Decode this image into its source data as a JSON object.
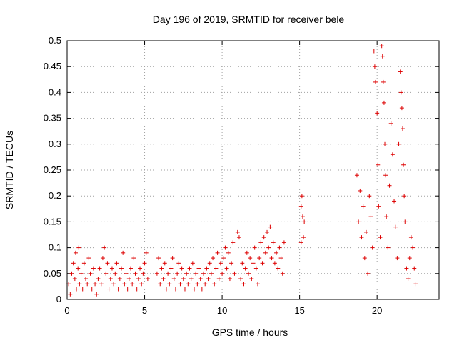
{
  "chart_data": {
    "type": "scatter",
    "title": "Day 196 of 2019, SRMTID for receiver bele",
    "xlabel": "GPS time / hours",
    "ylabel": "SRMTID / TECUs",
    "xlim": [
      0,
      24
    ],
    "ylim": [
      0,
      0.5
    ],
    "grid": true,
    "marker": "+",
    "x_ticks": [
      {
        "value": 0,
        "label": "0"
      },
      {
        "value": 5,
        "label": "5"
      },
      {
        "value": 10,
        "label": "10"
      },
      {
        "value": 15,
        "label": "15"
      },
      {
        "value": 20,
        "label": "20"
      }
    ],
    "y_ticks": [
      {
        "value": 0,
        "label": "0"
      },
      {
        "value": 0.05,
        "label": "0.05"
      },
      {
        "value": 0.1,
        "label": "0.1"
      },
      {
        "value": 0.15,
        "label": "0.15"
      },
      {
        "value": 0.2,
        "label": "0.2"
      },
      {
        "value": 0.25,
        "label": "0.25"
      },
      {
        "value": 0.3,
        "label": "0.3"
      },
      {
        "value": 0.35,
        "label": "0.35"
      },
      {
        "value": 0.4,
        "label": "0.4"
      },
      {
        "value": 0.45,
        "label": "0.45"
      },
      {
        "value": 0.5,
        "label": "0.5"
      }
    ],
    "series": [
      {
        "name": "SRMTID",
        "color": "#dd0000",
        "points": [
          [
            0.1,
            0.03
          ],
          [
            0.2,
            0.01
          ],
          [
            0.3,
            0.05
          ],
          [
            0.4,
            0.07
          ],
          [
            0.5,
            0.04
          ],
          [
            0.55,
            0.09
          ],
          [
            0.6,
            0.02
          ],
          [
            0.7,
            0.06
          ],
          [
            0.75,
            0.1
          ],
          [
            0.8,
            0.03
          ],
          [
            0.9,
            0.05
          ],
          [
            1.0,
            0.02
          ],
          [
            1.1,
            0.07
          ],
          [
            1.2,
            0.04
          ],
          [
            1.3,
            0.03
          ],
          [
            1.4,
            0.08
          ],
          [
            1.5,
            0.05
          ],
          [
            1.6,
            0.02
          ],
          [
            1.7,
            0.06
          ],
          [
            1.8,
            0.03
          ],
          [
            1.9,
            0.01
          ],
          [
            2.0,
            0.04
          ],
          [
            2.1,
            0.06
          ],
          [
            2.2,
            0.03
          ],
          [
            2.3,
            0.08
          ],
          [
            2.4,
            0.1
          ],
          [
            2.5,
            0.05
          ],
          [
            2.6,
            0.07
          ],
          [
            2.7,
            0.02
          ],
          [
            2.8,
            0.04
          ],
          [
            2.9,
            0.06
          ],
          [
            3.0,
            0.03
          ],
          [
            3.1,
            0.05
          ],
          [
            3.2,
            0.07
          ],
          [
            3.3,
            0.02
          ],
          [
            3.4,
            0.04
          ],
          [
            3.5,
            0.06
          ],
          [
            3.6,
            0.09
          ],
          [
            3.7,
            0.03
          ],
          [
            3.8,
            0.05
          ],
          [
            3.9,
            0.02
          ],
          [
            4.0,
            0.04
          ],
          [
            4.1,
            0.06
          ],
          [
            4.2,
            0.03
          ],
          [
            4.3,
            0.08
          ],
          [
            4.4,
            0.05
          ],
          [
            4.5,
            0.02
          ],
          [
            4.6,
            0.04
          ],
          [
            4.7,
            0.06
          ],
          [
            4.8,
            0.03
          ],
          [
            4.9,
            0.05
          ],
          [
            5.0,
            0.07
          ],
          [
            5.1,
            0.09
          ],
          [
            5.2,
            0.04
          ],
          [
            5.8,
            0.05
          ],
          [
            5.9,
            0.08
          ],
          [
            6.0,
            0.03
          ],
          [
            6.1,
            0.06
          ],
          [
            6.2,
            0.04
          ],
          [
            6.3,
            0.07
          ],
          [
            6.4,
            0.02
          ],
          [
            6.5,
            0.05
          ],
          [
            6.6,
            0.03
          ],
          [
            6.7,
            0.06
          ],
          [
            6.8,
            0.08
          ],
          [
            6.9,
            0.04
          ],
          [
            7.0,
            0.02
          ],
          [
            7.1,
            0.05
          ],
          [
            7.2,
            0.07
          ],
          [
            7.3,
            0.03
          ],
          [
            7.4,
            0.06
          ],
          [
            7.5,
            0.04
          ],
          [
            7.6,
            0.02
          ],
          [
            7.7,
            0.05
          ],
          [
            7.8,
            0.03
          ],
          [
            7.9,
            0.06
          ],
          [
            8.0,
            0.04
          ],
          [
            8.1,
            0.07
          ],
          [
            8.2,
            0.02
          ],
          [
            8.3,
            0.05
          ],
          [
            8.4,
            0.03
          ],
          [
            8.5,
            0.06
          ],
          [
            8.6,
            0.04
          ],
          [
            8.7,
            0.02
          ],
          [
            8.8,
            0.05
          ],
          [
            8.9,
            0.03
          ],
          [
            9.0,
            0.06
          ],
          [
            9.1,
            0.04
          ],
          [
            9.2,
            0.07
          ],
          [
            9.3,
            0.05
          ],
          [
            9.4,
            0.08
          ],
          [
            9.5,
            0.03
          ],
          [
            9.6,
            0.06
          ],
          [
            9.7,
            0.09
          ],
          [
            9.8,
            0.04
          ],
          [
            9.9,
            0.07
          ],
          [
            10.0,
            0.05
          ],
          [
            10.1,
            0.08
          ],
          [
            10.2,
            0.1
          ],
          [
            10.3,
            0.06
          ],
          [
            10.4,
            0.09
          ],
          [
            10.5,
            0.04
          ],
          [
            10.6,
            0.07
          ],
          [
            10.7,
            0.11
          ],
          [
            10.8,
            0.05
          ],
          [
            11.0,
            0.13
          ],
          [
            11.1,
            0.12
          ],
          [
            11.2,
            0.04
          ],
          [
            11.3,
            0.07
          ],
          [
            11.4,
            0.03
          ],
          [
            11.5,
            0.06
          ],
          [
            11.6,
            0.09
          ],
          [
            11.7,
            0.05
          ],
          [
            11.8,
            0.08
          ],
          [
            11.9,
            0.04
          ],
          [
            12.0,
            0.07
          ],
          [
            12.1,
            0.1
          ],
          [
            12.2,
            0.06
          ],
          [
            12.3,
            0.03
          ],
          [
            12.4,
            0.08
          ],
          [
            12.5,
            0.11
          ],
          [
            12.6,
            0.07
          ],
          [
            12.7,
            0.12
          ],
          [
            12.8,
            0.09
          ],
          [
            12.9,
            0.13
          ],
          [
            13.0,
            0.1
          ],
          [
            13.1,
            0.14
          ],
          [
            13.2,
            0.08
          ],
          [
            13.3,
            0.11
          ],
          [
            13.4,
            0.07
          ],
          [
            13.5,
            0.09
          ],
          [
            13.6,
            0.06
          ],
          [
            13.7,
            0.1
          ],
          [
            13.8,
            0.08
          ],
          [
            13.9,
            0.05
          ],
          [
            14.0,
            0.11
          ],
          [
            15.1,
            0.18
          ],
          [
            15.15,
            0.2
          ],
          [
            15.2,
            0.16
          ],
          [
            15.25,
            0.12
          ],
          [
            15.3,
            0.15
          ],
          [
            15.1,
            0.11
          ],
          [
            18.7,
            0.24
          ],
          [
            18.8,
            0.15
          ],
          [
            18.9,
            0.21
          ],
          [
            19.0,
            0.12
          ],
          [
            19.1,
            0.18
          ],
          [
            19.2,
            0.08
          ],
          [
            19.3,
            0.13
          ],
          [
            19.4,
            0.05
          ],
          [
            19.5,
            0.2
          ],
          [
            19.6,
            0.16
          ],
          [
            19.7,
            0.1
          ],
          [
            19.8,
            0.48
          ],
          [
            19.85,
            0.45
          ],
          [
            19.9,
            0.42
          ],
          [
            20.0,
            0.36
          ],
          [
            20.05,
            0.26
          ],
          [
            20.1,
            0.18
          ],
          [
            20.2,
            0.12
          ],
          [
            20.3,
            0.49
          ],
          [
            20.35,
            0.47
          ],
          [
            20.4,
            0.42
          ],
          [
            20.45,
            0.38
          ],
          [
            20.5,
            0.3
          ],
          [
            20.55,
            0.24
          ],
          [
            20.6,
            0.16
          ],
          [
            20.7,
            0.1
          ],
          [
            20.8,
            0.22
          ],
          [
            20.9,
            0.34
          ],
          [
            21.0,
            0.28
          ],
          [
            21.1,
            0.19
          ],
          [
            21.2,
            0.14
          ],
          [
            21.3,
            0.08
          ],
          [
            21.4,
            0.3
          ],
          [
            21.5,
            0.44
          ],
          [
            21.55,
            0.4
          ],
          [
            21.6,
            0.37
          ],
          [
            21.65,
            0.33
          ],
          [
            21.7,
            0.26
          ],
          [
            21.75,
            0.2
          ],
          [
            21.8,
            0.15
          ],
          [
            21.9,
            0.06
          ],
          [
            22.0,
            0.04
          ],
          [
            22.1,
            0.08
          ],
          [
            22.2,
            0.12
          ],
          [
            22.3,
            0.1
          ],
          [
            22.4,
            0.06
          ],
          [
            22.5,
            0.03
          ]
        ]
      }
    ]
  }
}
